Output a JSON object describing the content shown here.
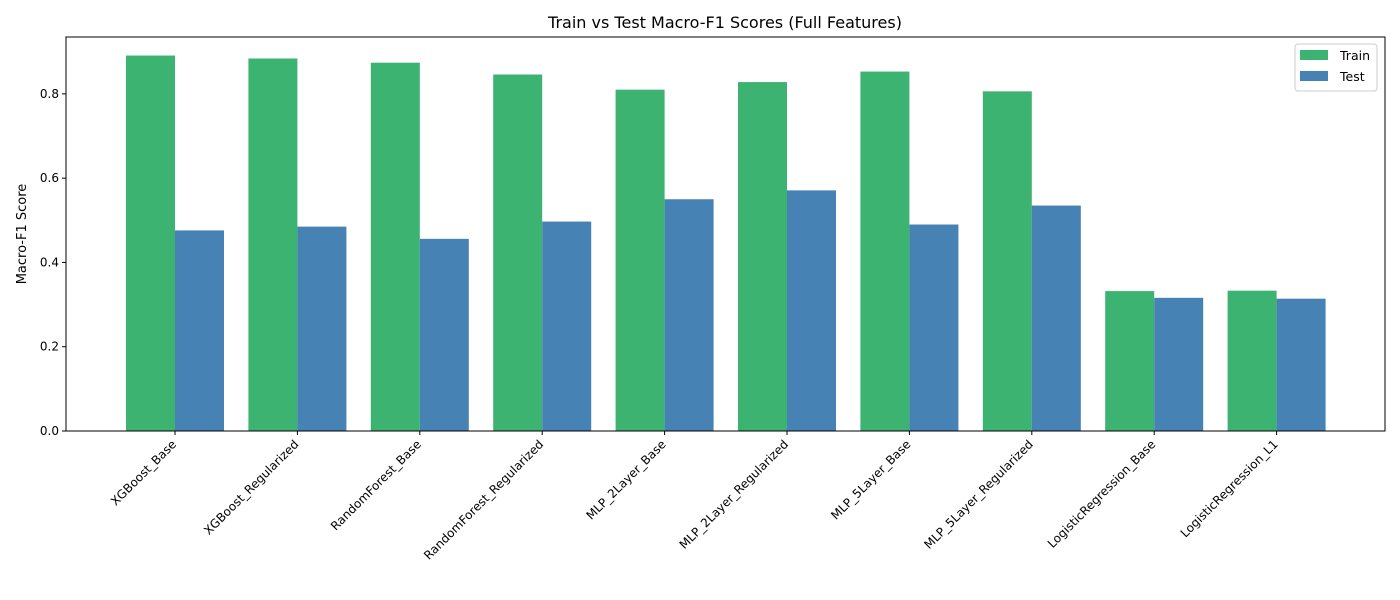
{
  "chart_data": {
    "type": "bar",
    "title": "Train vs Test Macro-F1 Scores (Full Features)",
    "xlabel": "",
    "ylabel": "Macro-F1 Score",
    "ylim": [
      0,
      0.935
    ],
    "yticks": [
      "0.0",
      "0.2",
      "0.4",
      "0.6",
      "0.8"
    ],
    "grid": false,
    "legend_position": "top-right",
    "categories": [
      "XGBoost_Base",
      "XGBoost_Regularized",
      "RandomForest_Base",
      "RandomForest_Regularized",
      "MLP_2Layer_Base",
      "MLP_2Layer_Regularized",
      "MLP_5Layer_Base",
      "MLP_5Layer_Regularized",
      "LogisticRegression_Base",
      "LogisticRegression_L1"
    ],
    "series": [
      {
        "name": "Train",
        "color": "#3cb371",
        "values": [
          0.891,
          0.884,
          0.874,
          0.846,
          0.81,
          0.828,
          0.853,
          0.806,
          0.332,
          0.333
        ]
      },
      {
        "name": "Test",
        "color": "#4682b4",
        "values": [
          0.476,
          0.485,
          0.456,
          0.497,
          0.55,
          0.571,
          0.49,
          0.535,
          0.316,
          0.314
        ]
      }
    ]
  }
}
